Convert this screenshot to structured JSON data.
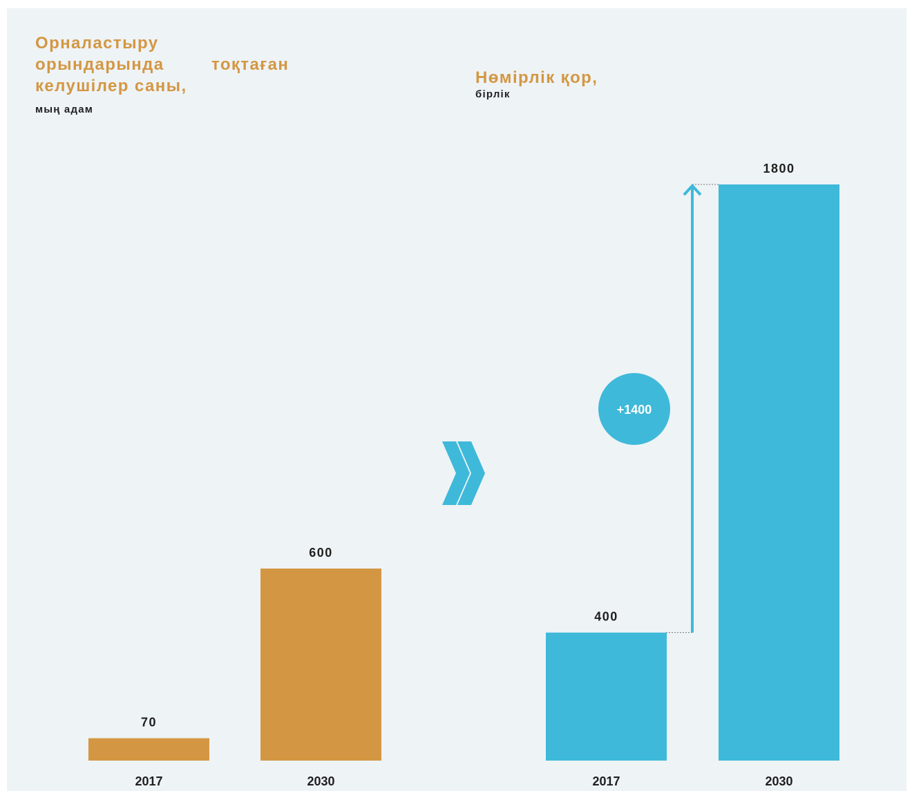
{
  "colors": {
    "left_series": "#d39743",
    "right_series": "#3eb9da",
    "title": "#d39743",
    "text": "#1f1f1f",
    "background": "#eef3f6"
  },
  "icons": [
    "double-chevron-right-icon",
    "up-arrow-icon"
  ],
  "chart_data": [
    {
      "type": "bar",
      "title_lines": [
        "Орналастыру",
        "орындарында",
        "тоқтаған",
        "келушілер саны,"
      ],
      "unit": "мың адам",
      "categories": [
        "2017",
        "2030"
      ],
      "values": [
        70,
        600
      ],
      "value_labels": [
        "70",
        "600"
      ],
      "ylim": [
        0,
        1800
      ],
      "grid": false,
      "legend": "none"
    },
    {
      "type": "bar",
      "title": "Нөмірлік қор,",
      "unit": "бірлік",
      "categories": [
        "2017",
        "2030"
      ],
      "values": [
        400,
        1800
      ],
      "value_labels": [
        "400",
        "1800"
      ],
      "ylim": [
        0,
        1800
      ],
      "grid": false,
      "legend": "none",
      "annotation": "+1400"
    }
  ]
}
